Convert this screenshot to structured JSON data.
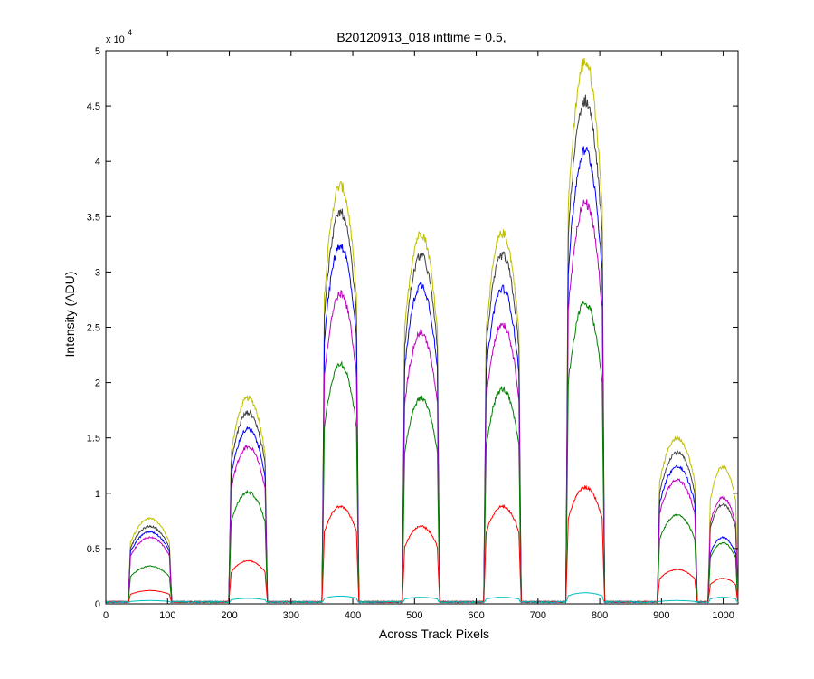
{
  "chart_data": {
    "type": "line",
    "title": "B20120913_018 inttime = 0.5,",
    "xlabel": "Across Track Pixels",
    "ylabel": "Intensity (ADU)",
    "exponent_base": "x 10",
    "exponent_power": "4",
    "xlim": [
      0,
      1024
    ],
    "ylim": [
      0,
      50000
    ],
    "grid": false,
    "legend": "none",
    "x_ticks": [
      0,
      100,
      200,
      300,
      400,
      500,
      600,
      700,
      800,
      900,
      1000
    ],
    "x_tick_labels": [
      "0",
      "100",
      "200",
      "300",
      "400",
      "500",
      "600",
      "700",
      "800",
      "900",
      "1000"
    ],
    "y_ticks": [
      0,
      5000,
      10000,
      15000,
      20000,
      25000,
      30000,
      35000,
      40000,
      45000,
      50000
    ],
    "y_tick_labels": [
      "0",
      "0.5",
      "1",
      "1.5",
      "2",
      "2.5",
      "3",
      "3.5",
      "4",
      "4.5",
      "5"
    ],
    "segments": [
      {
        "x_start": 36,
        "x_end": 107
      },
      {
        "x_start": 199,
        "x_end": 262
      },
      {
        "x_start": 350,
        "x_end": 410
      },
      {
        "x_start": 480,
        "x_end": 541
      },
      {
        "x_start": 612,
        "x_end": 673
      },
      {
        "x_start": 745,
        "x_end": 808
      },
      {
        "x_start": 893,
        "x_end": 958
      },
      {
        "x_start": 975,
        "x_end": 1024
      }
    ],
    "series": [
      {
        "color": "#bfbf00",
        "peaks": [
          7700,
          18600,
          37800,
          33500,
          33500,
          49000,
          15000,
          12400
        ]
      },
      {
        "color": "#404040",
        "peaks": [
          7000,
          17300,
          35400,
          31500,
          31500,
          45500,
          13700,
          9000
        ]
      },
      {
        "color": "#0000ff",
        "peaks": [
          6500,
          15800,
          32400,
          28800,
          28500,
          41000,
          12400,
          6000
        ]
      },
      {
        "color": "#bf00bf",
        "peaks": [
          6000,
          14200,
          28000,
          24500,
          25300,
          36200,
          11200,
          9600
        ]
      },
      {
        "color": "#008000",
        "peaks": [
          3400,
          10100,
          21700,
          18600,
          19400,
          27200,
          8000,
          5500
        ]
      },
      {
        "color": "#ff0000",
        "peaks": [
          1200,
          3900,
          8800,
          7000,
          8800,
          10500,
          3100,
          2300
        ]
      },
      {
        "color": "#00bfbf",
        "peaks": [
          300,
          500,
          700,
          600,
          600,
          1000,
          300,
          600
        ]
      }
    ]
  }
}
